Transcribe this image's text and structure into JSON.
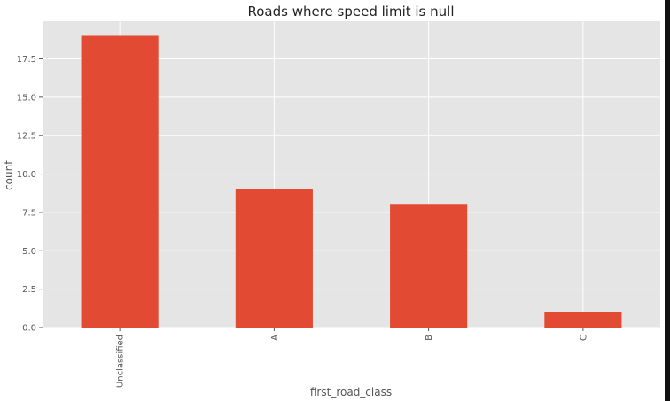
{
  "chart_data": {
    "type": "bar",
    "title": "Roads where speed limit is null",
    "xlabel": "first_road_class",
    "ylabel": "count",
    "categories": [
      "Unclassified",
      "A",
      "B",
      "C"
    ],
    "values": [
      19,
      9,
      8,
      1
    ],
    "ylim": [
      0,
      19.95
    ],
    "yticks": [
      "0.0",
      "2.5",
      "5.0",
      "7.5",
      "10.0",
      "12.5",
      "15.0",
      "17.5"
    ],
    "grid": true,
    "legend": "none",
    "colors": {
      "bar": "#e24a33",
      "plot_background": "#e5e5e5",
      "grid": "#ffffff",
      "text": "#555555",
      "title": "#222222"
    }
  }
}
